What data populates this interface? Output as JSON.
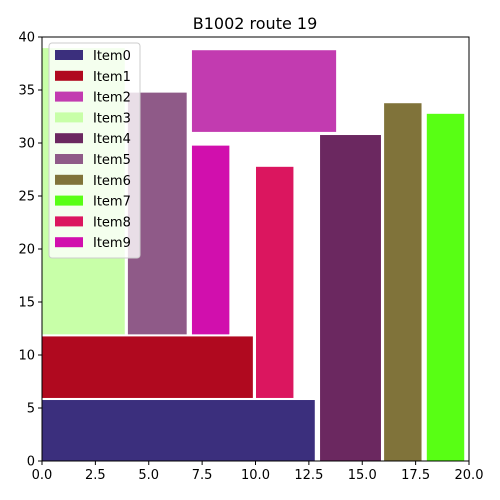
{
  "chart_data": {
    "type": "bar",
    "title": "B1002 route 19",
    "xlabel": "",
    "ylabel": "",
    "xlim": [
      0,
      20
    ],
    "ylim": [
      0,
      40
    ],
    "xticks": [
      "0.0",
      "2.5",
      "5.0",
      "7.5",
      "10.0",
      "12.5",
      "15.0",
      "17.5",
      "20.0"
    ],
    "yticks": [
      "0",
      "5",
      "10",
      "15",
      "20",
      "25",
      "30",
      "35",
      "40"
    ],
    "grid": false,
    "legend_position": "top-left",
    "series": [
      {
        "name": "Item0",
        "color": "#3b2f7d",
        "x0": 0.0,
        "x1": 12.8,
        "y0": 0.0,
        "y1": 5.8
      },
      {
        "name": "Item1",
        "color": "#b0091f",
        "x0": 0.0,
        "x1": 9.9,
        "y0": 5.9,
        "y1": 11.8
      },
      {
        "name": "Item2",
        "color": "#c23bb0",
        "x0": 7.0,
        "x1": 13.8,
        "y0": 31.0,
        "y1": 38.8
      },
      {
        "name": "Item3",
        "color": "#c8ffa8",
        "x0": 0.0,
        "x1": 3.9,
        "y0": 11.9,
        "y1": 39.0
      },
      {
        "name": "Item4",
        "color": "#6b2860",
        "x0": 13.0,
        "x1": 15.9,
        "y0": 0.0,
        "y1": 30.8
      },
      {
        "name": "Item5",
        "color": "#8f5a88",
        "x0": 4.0,
        "x1": 6.8,
        "y0": 11.9,
        "y1": 34.8
      },
      {
        "name": "Item6",
        "color": "#80733a",
        "x0": 16.0,
        "x1": 17.8,
        "y0": 0.0,
        "y1": 33.8
      },
      {
        "name": "Item7",
        "color": "#58ff14",
        "x0": 18.0,
        "x1": 19.8,
        "y0": 0.0,
        "y1": 32.8
      },
      {
        "name": "Item8",
        "color": "#db165f",
        "x0": 10.0,
        "x1": 11.8,
        "y0": 5.9,
        "y1": 27.8
      },
      {
        "name": "Item9",
        "color": "#d10fad",
        "x0": 7.0,
        "x1": 8.8,
        "y0": 11.9,
        "y1": 29.8
      }
    ]
  }
}
